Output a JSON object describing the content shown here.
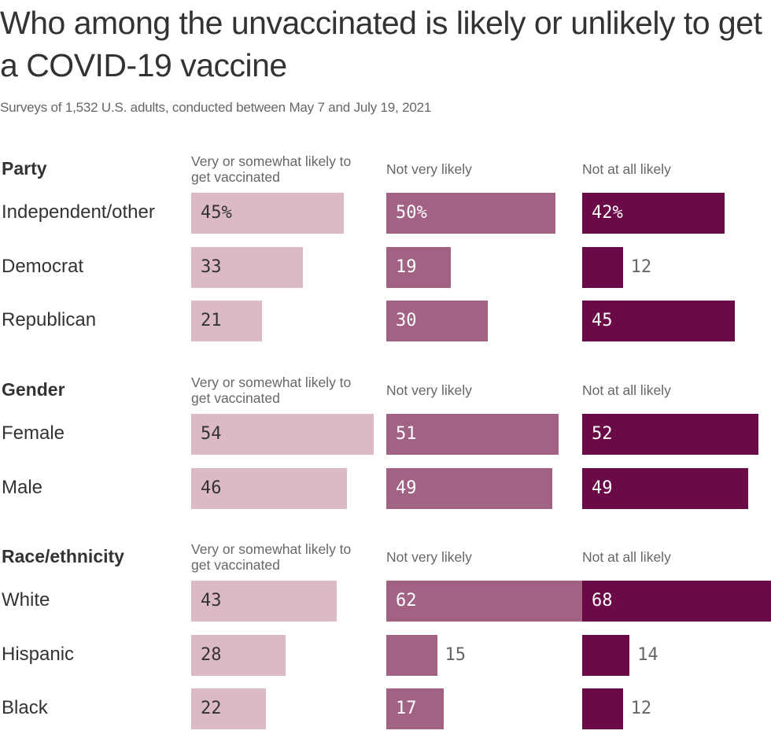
{
  "title": "Who among the unvaccinated is likely or unlikely to get a COVID-19 vaccine",
  "subtitle": "Surveys of 1,532 U.S. adults, conducted between May 7 and July 19, 2021",
  "colors": {
    "very_or_somewhat_likely": "#dbbac5",
    "not_very_likely": "#a26283",
    "not_at_all_likely": "#6a0a46"
  },
  "chart_data": {
    "type": "bar",
    "orientation": "horizontal",
    "title": "Who among the unvaccinated is likely or unlikely to get a COVID-19 vaccine",
    "subtitle": "Surveys of 1,532 U.S. adults, conducted between May 7 and July 19, 2021",
    "unit": "%",
    "xlim": [
      0,
      70
    ],
    "grid": false,
    "columns": [
      "Very or somewhat likely to get vaccinated",
      "Not very likely",
      "Not at all likely"
    ],
    "groups": [
      {
        "name": "Party",
        "categories": [
          "Independent/other",
          "Democrat",
          "Republican"
        ],
        "series": [
          {
            "name": "Very or somewhat likely to get vaccinated",
            "values": [
              45,
              33,
              21
            ],
            "labels": [
              "45%",
              "33",
              "21"
            ]
          },
          {
            "name": "Not very likely",
            "values": [
              50,
              19,
              30
            ],
            "labels": [
              "50%",
              "19",
              "30"
            ]
          },
          {
            "name": "Not at all likely",
            "values": [
              42,
              12,
              45
            ],
            "labels": [
              "42%",
              "12",
              "45"
            ]
          }
        ]
      },
      {
        "name": "Gender",
        "categories": [
          "Female",
          "Male"
        ],
        "series": [
          {
            "name": "Very or somewhat likely to get vaccinated",
            "values": [
              54,
              46
            ],
            "labels": [
              "54",
              "46"
            ]
          },
          {
            "name": "Not very likely",
            "values": [
              51,
              49
            ],
            "labels": [
              "51",
              "49"
            ]
          },
          {
            "name": "Not at all likely",
            "values": [
              52,
              49
            ],
            "labels": [
              "52",
              "49"
            ]
          }
        ]
      },
      {
        "name": "Race/ethnicity",
        "categories": [
          "White",
          "Hispanic",
          "Black"
        ],
        "series": [
          {
            "name": "Very or somewhat likely to get vaccinated",
            "values": [
              43,
              28,
              22
            ],
            "labels": [
              "43",
              "28",
              "22"
            ]
          },
          {
            "name": "Not very likely",
            "values": [
              62,
              15,
              17
            ],
            "labels": [
              "62",
              "15",
              "17"
            ]
          },
          {
            "name": "Not at all likely",
            "values": [
              68,
              14,
              12
            ],
            "labels": [
              "68",
              "14",
              "12"
            ]
          }
        ]
      }
    ]
  }
}
